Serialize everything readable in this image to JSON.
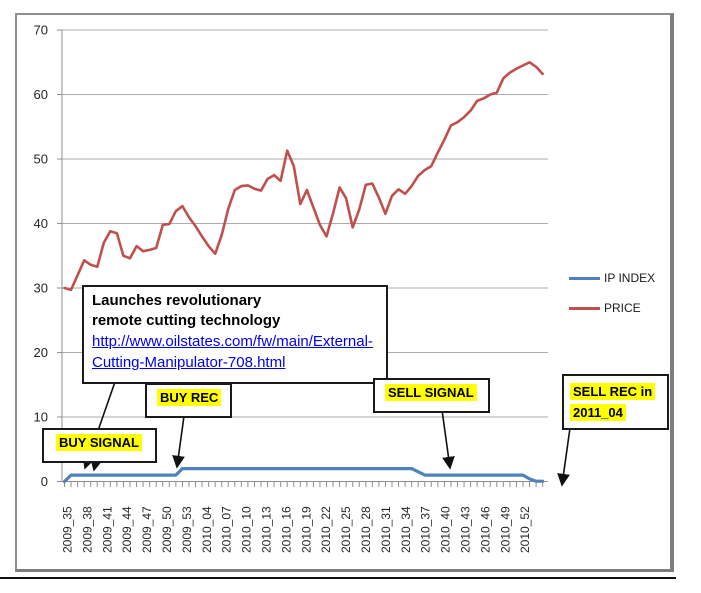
{
  "chart_data": {
    "type": "line",
    "title": "",
    "xlabel": "",
    "ylabel": "",
    "ylim": [
      0,
      70
    ],
    "y_ticks": [
      0,
      10,
      20,
      30,
      40,
      50,
      60,
      70
    ],
    "grid": "horizontal",
    "legend_position": "right",
    "x_tick_labels": [
      "2009_35",
      "2009_38",
      "2009_41",
      "2009_44",
      "2009_47",
      "2009_50",
      "2009_53",
      "2010_04",
      "2010_07",
      "2010_10",
      "2010_13",
      "2010_16",
      "2010_19",
      "2010_22",
      "2010_25",
      "2010_28",
      "2010_31",
      "2010_34",
      "2010_37",
      "2010_40",
      "2010_43",
      "2010_46",
      "2010_49",
      "2010_52"
    ],
    "categories": [
      "2009_35",
      "2009_36",
      "2009_37",
      "2009_38",
      "2009_39",
      "2009_40",
      "2009_41",
      "2009_42",
      "2009_43",
      "2009_44",
      "2009_45",
      "2009_46",
      "2009_47",
      "2009_48",
      "2009_49",
      "2009_50",
      "2009_51",
      "2009_52",
      "2009_53",
      "2010_01",
      "2010_02",
      "2010_03",
      "2010_04",
      "2010_05",
      "2010_06",
      "2010_07",
      "2010_08",
      "2010_09",
      "2010_10",
      "2010_11",
      "2010_12",
      "2010_13",
      "2010_14",
      "2010_15",
      "2010_16",
      "2010_17",
      "2010_18",
      "2010_19",
      "2010_20",
      "2010_21",
      "2010_22",
      "2010_23",
      "2010_24",
      "2010_25",
      "2010_26",
      "2010_27",
      "2010_28",
      "2010_29",
      "2010_30",
      "2010_31",
      "2010_32",
      "2010_33",
      "2010_34",
      "2010_35",
      "2010_36",
      "2010_37",
      "2010_38",
      "2010_39",
      "2010_40",
      "2010_41",
      "2010_42",
      "2010_43",
      "2010_44",
      "2010_45",
      "2010_46",
      "2010_47",
      "2010_48",
      "2010_49",
      "2010_50",
      "2010_51",
      "2010_52",
      "2011_01",
      "2011_02",
      "2011_03"
    ],
    "series": [
      {
        "name": "IP INDEX",
        "color": "#4F81BD",
        "values": [
          0,
          1,
          1,
          1,
          1,
          1,
          1,
          1,
          1,
          1,
          1,
          1,
          1,
          1,
          1,
          1,
          1,
          1,
          2,
          2,
          2,
          2,
          2,
          2,
          2,
          2,
          2,
          2,
          2,
          2,
          2,
          2,
          2,
          2,
          2,
          2,
          2,
          2,
          2,
          2,
          2,
          2,
          2,
          2,
          2,
          2,
          2,
          2,
          2,
          2,
          2,
          2,
          2,
          2,
          1.5,
          1,
          1,
          1,
          1,
          1,
          1,
          1,
          1,
          1,
          1,
          1,
          1,
          1,
          1,
          1,
          1,
          0.4,
          0.05,
          0.05
        ]
      },
      {
        "name": "PRICE",
        "color": "#C0504D",
        "values": [
          30.0,
          29.7,
          32.0,
          34.3,
          33.6,
          33.3,
          37.0,
          38.8,
          38.5,
          35.0,
          34.6,
          36.5,
          35.7,
          35.9,
          36.2,
          39.8,
          39.9,
          41.9,
          42.7,
          41.0,
          39.6,
          38.0,
          36.5,
          35.3,
          38.2,
          42.3,
          45.2,
          45.8,
          45.9,
          45.4,
          45.1,
          46.9,
          47.5,
          46.6,
          51.3,
          48.9,
          43.0,
          45.2,
          42.5,
          39.8,
          38.0,
          41.6,
          45.6,
          43.9,
          39.4,
          42.2,
          46.0,
          46.2,
          44.0,
          41.5,
          44.3,
          45.3,
          44.6,
          45.8,
          47.4,
          48.3,
          48.9,
          51.0,
          53.0,
          55.2,
          55.7,
          56.5,
          57.5,
          59.0,
          59.4,
          60.0,
          60.3,
          62.5,
          63.4,
          64.0,
          64.5,
          65.0,
          64.3,
          63.2
        ]
      }
    ]
  },
  "legend": {
    "items": [
      {
        "label": "IP INDEX",
        "color": "#4F81BD"
      },
      {
        "label": "PRICE",
        "color": "#C0504D"
      }
    ]
  },
  "annotations": {
    "launch_note": {
      "line1": "Launches revolutionary",
      "line2": "remote cutting technology",
      "link_line1": "http://www.oilstates.com/fw/main/Ext",
      "link_line2": "ernal-Cutting-Manipulator-708.html"
    },
    "buy_signal": "BUY SIGNAL",
    "buy_rec": "BUY REC",
    "sell_signal": "SELL SIGNAL",
    "sell_rec_line1": "SELL REC in",
    "sell_rec_line2": "2011_04",
    "highlight_color": "#FFFF00"
  }
}
